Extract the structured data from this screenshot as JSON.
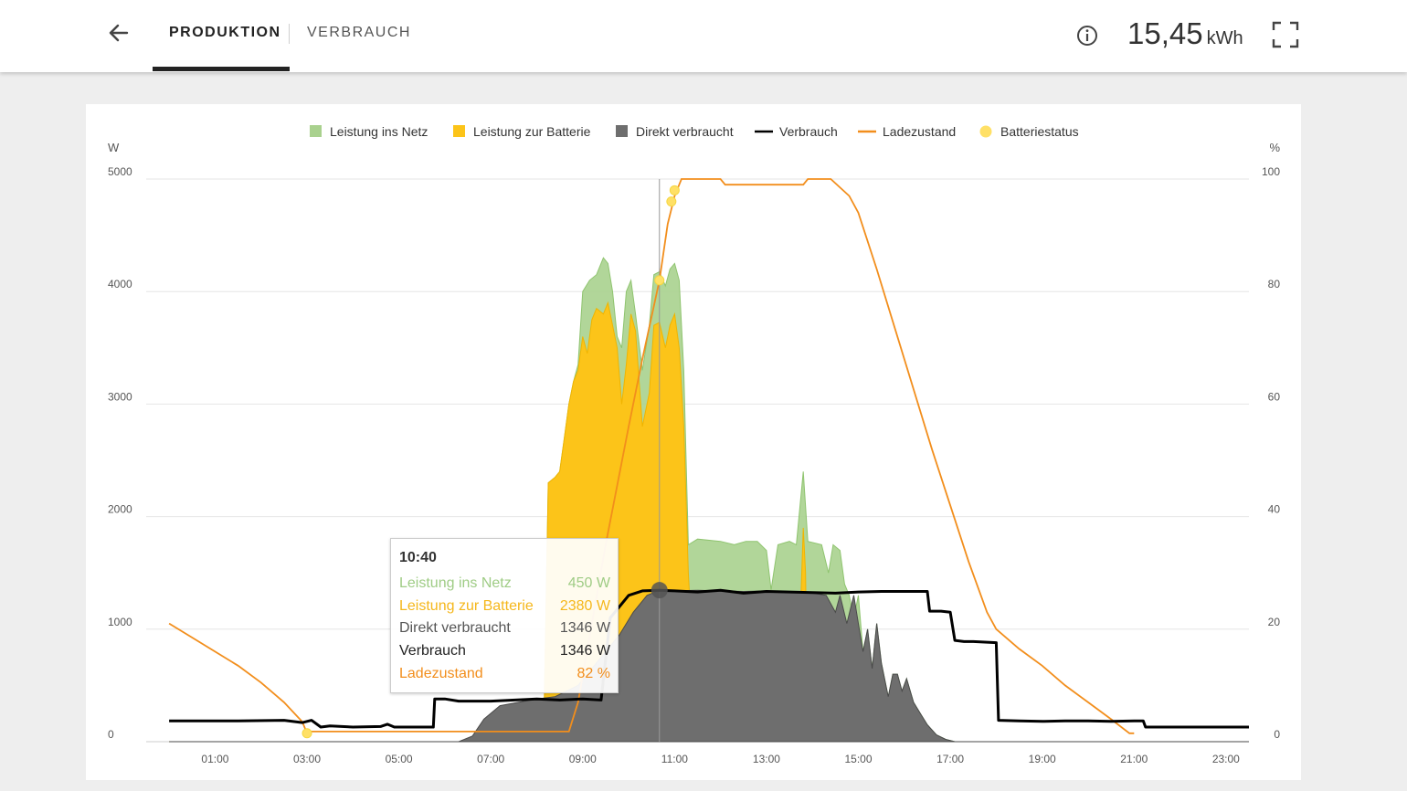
{
  "header": {
    "back_icon": "arrow-left-icon",
    "tabs": [
      {
        "label": "PRODUKTION",
        "active": true
      },
      {
        "label": "VERBRAUCH",
        "active": false
      }
    ],
    "info_icon": "info-icon",
    "total_value": "15,45",
    "total_unit": "kWh",
    "expand_icon": "fullscreen-icon"
  },
  "colors": {
    "netz": "#a9d18e",
    "batterie": "#fcc419",
    "direkt": "#6e6e6e",
    "verbrauch": "#000000",
    "ladezustand": "#f28e1c",
    "batteriestatus": "#ffe066"
  },
  "tooltip": {
    "time": "10:40",
    "rows": [
      {
        "label": "Leistung ins Netz",
        "value": "450  W",
        "color": "#9fcc85"
      },
      {
        "label": "Leistung zur Batterie",
        "value": "2380  W",
        "color": "#f5b71b"
      },
      {
        "label": "Direkt verbraucht",
        "value": "1346  W",
        "color": "#555555"
      },
      {
        "label": "Verbrauch",
        "value": "1346  W",
        "color": "#222222"
      },
      {
        "label": "Ladezustand",
        "value": "82  %",
        "color": "#f28e1c"
      }
    ]
  },
  "chart_data": {
    "type": "area",
    "legend_position": "top",
    "grid": true,
    "left_unit": "W",
    "right_unit": "%",
    "x_unit": "h",
    "xlim": [
      -0.5,
      23.5
    ],
    "ylim_left": [
      0,
      5000
    ],
    "ylim_right": [
      0,
      100
    ],
    "left_ticks": [
      "0",
      "1000",
      "2000",
      "3000",
      "4000",
      "5000"
    ],
    "right_ticks": [
      "0",
      "20",
      "40",
      "60",
      "80",
      "100"
    ],
    "x_ticks": [
      {
        "x": 1,
        "label": "01:00"
      },
      {
        "x": 3,
        "label": "03:00"
      },
      {
        "x": 5,
        "label": "05:00"
      },
      {
        "x": 7,
        "label": "07:00"
      },
      {
        "x": 9,
        "label": "09:00"
      },
      {
        "x": 11,
        "label": "11:00"
      },
      {
        "x": 13,
        "label": "13:00"
      },
      {
        "x": 15,
        "label": "15:00"
      },
      {
        "x": 17,
        "label": "17:00"
      },
      {
        "x": 19,
        "label": "19:00"
      },
      {
        "x": 21,
        "label": "21:00"
      },
      {
        "x": 23,
        "label": "23:00"
      }
    ],
    "legend": [
      {
        "key": "netz",
        "label": "Leistung ins Netz",
        "shape": "square"
      },
      {
        "key": "batterie",
        "label": "Leistung zur Batterie",
        "shape": "square"
      },
      {
        "key": "direkt",
        "label": "Direkt verbraucht",
        "shape": "square"
      },
      {
        "key": "verbrauch",
        "label": "Verbrauch",
        "shape": "line"
      },
      {
        "key": "ladezustand",
        "label": "Ladezustand",
        "shape": "line"
      },
      {
        "key": "batteriestatus",
        "label": "Batteriestatus",
        "shape": "circle"
      }
    ],
    "cursor_x": 10.67,
    "series": [
      {
        "key": "direkt",
        "kind": "area",
        "axis": "left",
        "points": [
          [
            0,
            0
          ],
          [
            6.3,
            0
          ],
          [
            6.6,
            50
          ],
          [
            6.85,
            200
          ],
          [
            7.2,
            320
          ],
          [
            7.6,
            350
          ],
          [
            8.0,
            380
          ],
          [
            8.4,
            400
          ],
          [
            8.9,
            500
          ],
          [
            9.2,
            650
          ],
          [
            9.5,
            800
          ],
          [
            9.8,
            950
          ],
          [
            10.1,
            1150
          ],
          [
            10.4,
            1300
          ],
          [
            10.67,
            1346
          ],
          [
            11.0,
            1340
          ],
          [
            11.5,
            1345
          ],
          [
            12.0,
            1340
          ],
          [
            12.5,
            1335
          ],
          [
            13.0,
            1340
          ],
          [
            13.5,
            1335
          ],
          [
            14.0,
            1320
          ],
          [
            14.3,
            1300
          ],
          [
            14.5,
            1150
          ],
          [
            14.6,
            1300
          ],
          [
            14.75,
            1050
          ],
          [
            14.9,
            1300
          ],
          [
            15.0,
            1050
          ],
          [
            15.1,
            800
          ],
          [
            15.2,
            1000
          ],
          [
            15.3,
            650
          ],
          [
            15.4,
            1050
          ],
          [
            15.5,
            700
          ],
          [
            15.65,
            400
          ],
          [
            15.75,
            600
          ],
          [
            15.85,
            600
          ],
          [
            15.95,
            450
          ],
          [
            16.05,
            560
          ],
          [
            16.2,
            350
          ],
          [
            16.35,
            250
          ],
          [
            16.5,
            150
          ],
          [
            16.7,
            60
          ],
          [
            16.9,
            20
          ],
          [
            17.1,
            0
          ],
          [
            23.5,
            0
          ]
        ]
      },
      {
        "key": "batterie",
        "kind": "area",
        "axis": "left",
        "points": [
          [
            0,
            0
          ],
          [
            8.15,
            0
          ],
          [
            8.25,
            2300
          ],
          [
            8.4,
            2350
          ],
          [
            8.5,
            2400
          ],
          [
            8.6,
            2700
          ],
          [
            8.7,
            3000
          ],
          [
            8.8,
            3200
          ],
          [
            8.9,
            3300
          ],
          [
            9.0,
            3600
          ],
          [
            9.1,
            3450
          ],
          [
            9.2,
            3750
          ],
          [
            9.3,
            3850
          ],
          [
            9.45,
            3800
          ],
          [
            9.55,
            3900
          ],
          [
            9.65,
            3700
          ],
          [
            9.75,
            3500
          ],
          [
            9.85,
            3000
          ],
          [
            9.95,
            3350
          ],
          [
            10.05,
            3800
          ],
          [
            10.15,
            3650
          ],
          [
            10.3,
            2800
          ],
          [
            10.45,
            3100
          ],
          [
            10.55,
            3700
          ],
          [
            10.67,
            3726
          ],
          [
            10.8,
            3500
          ],
          [
            10.9,
            3700
          ],
          [
            11.0,
            3800
          ],
          [
            11.1,
            3500
          ],
          [
            11.2,
            2800
          ],
          [
            11.3,
            1500
          ],
          [
            11.5,
            0
          ],
          [
            13.7,
            0
          ],
          [
            13.75,
            1300
          ],
          [
            13.8,
            1900
          ],
          [
            13.85,
            1500
          ],
          [
            13.9,
            0
          ],
          [
            23.5,
            0
          ]
        ]
      },
      {
        "key": "netz",
        "kind": "area",
        "axis": "left",
        "points": [
          [
            0,
            0
          ],
          [
            8.15,
            0
          ],
          [
            8.25,
            2300
          ],
          [
            8.4,
            2350
          ],
          [
            8.5,
            2400
          ],
          [
            8.6,
            2700
          ],
          [
            8.7,
            3000
          ],
          [
            8.8,
            3200
          ],
          [
            8.9,
            3350
          ],
          [
            9.0,
            4000
          ],
          [
            9.15,
            4100
          ],
          [
            9.3,
            4150
          ],
          [
            9.45,
            4300
          ],
          [
            9.55,
            4250
          ],
          [
            9.65,
            4000
          ],
          [
            9.75,
            3600
          ],
          [
            9.85,
            3500
          ],
          [
            9.95,
            4000
          ],
          [
            10.05,
            4100
          ],
          [
            10.15,
            3800
          ],
          [
            10.3,
            3300
          ],
          [
            10.45,
            3700
          ],
          [
            10.55,
            4150
          ],
          [
            10.67,
            4176
          ],
          [
            10.8,
            4050
          ],
          [
            10.9,
            4200
          ],
          [
            11.0,
            4250
          ],
          [
            11.1,
            4100
          ],
          [
            11.2,
            3300
          ],
          [
            11.3,
            1750
          ],
          [
            11.5,
            1800
          ],
          [
            12.0,
            1780
          ],
          [
            12.3,
            1750
          ],
          [
            12.55,
            1780
          ],
          [
            12.8,
            1780
          ],
          [
            13.0,
            1700
          ],
          [
            13.1,
            1350
          ],
          [
            13.25,
            1750
          ],
          [
            13.5,
            1780
          ],
          [
            13.65,
            1750
          ],
          [
            13.8,
            2400
          ],
          [
            13.9,
            1780
          ],
          [
            14.2,
            1750
          ],
          [
            14.35,
            1500
          ],
          [
            14.45,
            1750
          ],
          [
            14.6,
            1700
          ],
          [
            14.7,
            1400
          ],
          [
            14.8,
            1300
          ],
          [
            14.9,
            1100
          ],
          [
            15.0,
            1300
          ],
          [
            15.1,
            800
          ],
          [
            15.2,
            1000
          ],
          [
            15.3,
            650
          ],
          [
            15.4,
            1050
          ],
          [
            15.5,
            700
          ],
          [
            15.65,
            400
          ],
          [
            15.75,
            600
          ],
          [
            15.85,
            600
          ],
          [
            15.95,
            450
          ],
          [
            16.05,
            560
          ],
          [
            16.2,
            350
          ],
          [
            16.35,
            250
          ],
          [
            16.5,
            150
          ],
          [
            16.7,
            60
          ],
          [
            16.9,
            20
          ],
          [
            17.1,
            0
          ],
          [
            23.5,
            0
          ]
        ]
      },
      {
        "key": "verbrauch",
        "kind": "line",
        "axis": "left",
        "points": [
          [
            0,
            185
          ],
          [
            1.5,
            185
          ],
          [
            2.5,
            190
          ],
          [
            2.9,
            170
          ],
          [
            3.1,
            190
          ],
          [
            3.3,
            130
          ],
          [
            3.5,
            140
          ],
          [
            4.0,
            130
          ],
          [
            4.6,
            135
          ],
          [
            4.75,
            155
          ],
          [
            4.9,
            130
          ],
          [
            5.3,
            130
          ],
          [
            5.75,
            130
          ],
          [
            5.78,
            380
          ],
          [
            6.0,
            380
          ],
          [
            6.3,
            360
          ],
          [
            7.0,
            360
          ],
          [
            8.0,
            380
          ],
          [
            8.5,
            370
          ],
          [
            9.0,
            380
          ],
          [
            9.4,
            370
          ],
          [
            9.6,
            1100
          ],
          [
            10.0,
            1300
          ],
          [
            10.3,
            1340
          ],
          [
            10.67,
            1346
          ],
          [
            11.0,
            1340
          ],
          [
            11.5,
            1330
          ],
          [
            12.0,
            1345
          ],
          [
            12.5,
            1320
          ],
          [
            13.0,
            1335
          ],
          [
            13.5,
            1330
          ],
          [
            14.0,
            1325
          ],
          [
            14.5,
            1320
          ],
          [
            15.0,
            1330
          ],
          [
            15.5,
            1335
          ],
          [
            16.0,
            1335
          ],
          [
            16.5,
            1335
          ],
          [
            16.55,
            1160
          ],
          [
            16.8,
            1160
          ],
          [
            17.0,
            1150
          ],
          [
            17.1,
            900
          ],
          [
            17.3,
            890
          ],
          [
            17.5,
            890
          ],
          [
            18.0,
            880
          ],
          [
            18.05,
            190
          ],
          [
            18.5,
            185
          ],
          [
            19.0,
            180
          ],
          [
            19.5,
            185
          ],
          [
            20.0,
            185
          ],
          [
            20.5,
            180
          ],
          [
            21.0,
            185
          ],
          [
            21.2,
            185
          ],
          [
            21.25,
            130
          ],
          [
            22.0,
            130
          ],
          [
            23.0,
            130
          ],
          [
            23.5,
            130
          ]
        ]
      },
      {
        "key": "ladezustand",
        "kind": "line",
        "axis": "right",
        "points": [
          [
            0,
            21
          ],
          [
            0.5,
            18.5
          ],
          [
            1.0,
            16
          ],
          [
            1.5,
            13.5
          ],
          [
            2.0,
            10.5
          ],
          [
            2.5,
            7
          ],
          [
            2.9,
            3.5
          ],
          [
            3.0,
            1.5
          ],
          [
            3.1,
            1.8
          ],
          [
            8.5,
            1.8
          ],
          [
            8.7,
            1.8
          ],
          [
            8.9,
            7
          ],
          [
            9.5,
            35
          ],
          [
            10.0,
            56
          ],
          [
            10.3,
            68
          ],
          [
            10.67,
            82
          ],
          [
            10.85,
            92
          ],
          [
            11.0,
            97
          ],
          [
            11.1,
            99
          ],
          [
            11.15,
            100
          ],
          [
            12.0,
            100
          ],
          [
            12.1,
            99
          ],
          [
            13.0,
            99
          ],
          [
            13.8,
            99
          ],
          [
            13.9,
            100
          ],
          [
            14.4,
            100
          ],
          [
            14.8,
            97
          ],
          [
            15.0,
            94
          ],
          [
            15.4,
            84
          ],
          [
            16.0,
            68
          ],
          [
            16.6,
            52
          ],
          [
            17.0,
            42
          ],
          [
            17.4,
            32
          ],
          [
            17.8,
            23
          ],
          [
            18.0,
            20
          ],
          [
            18.5,
            16.5
          ],
          [
            19.0,
            13.5
          ],
          [
            19.5,
            10
          ],
          [
            20.0,
            7
          ],
          [
            20.5,
            4
          ],
          [
            20.9,
            1.5
          ],
          [
            21.0,
            1.5
          ]
        ]
      },
      {
        "key": "batteriestatus",
        "kind": "points",
        "axis": "right",
        "points": [
          [
            3.0,
            1.5
          ],
          [
            10.67,
            82
          ],
          [
            10.93,
            96
          ],
          [
            11.0,
            98
          ]
        ]
      }
    ]
  }
}
